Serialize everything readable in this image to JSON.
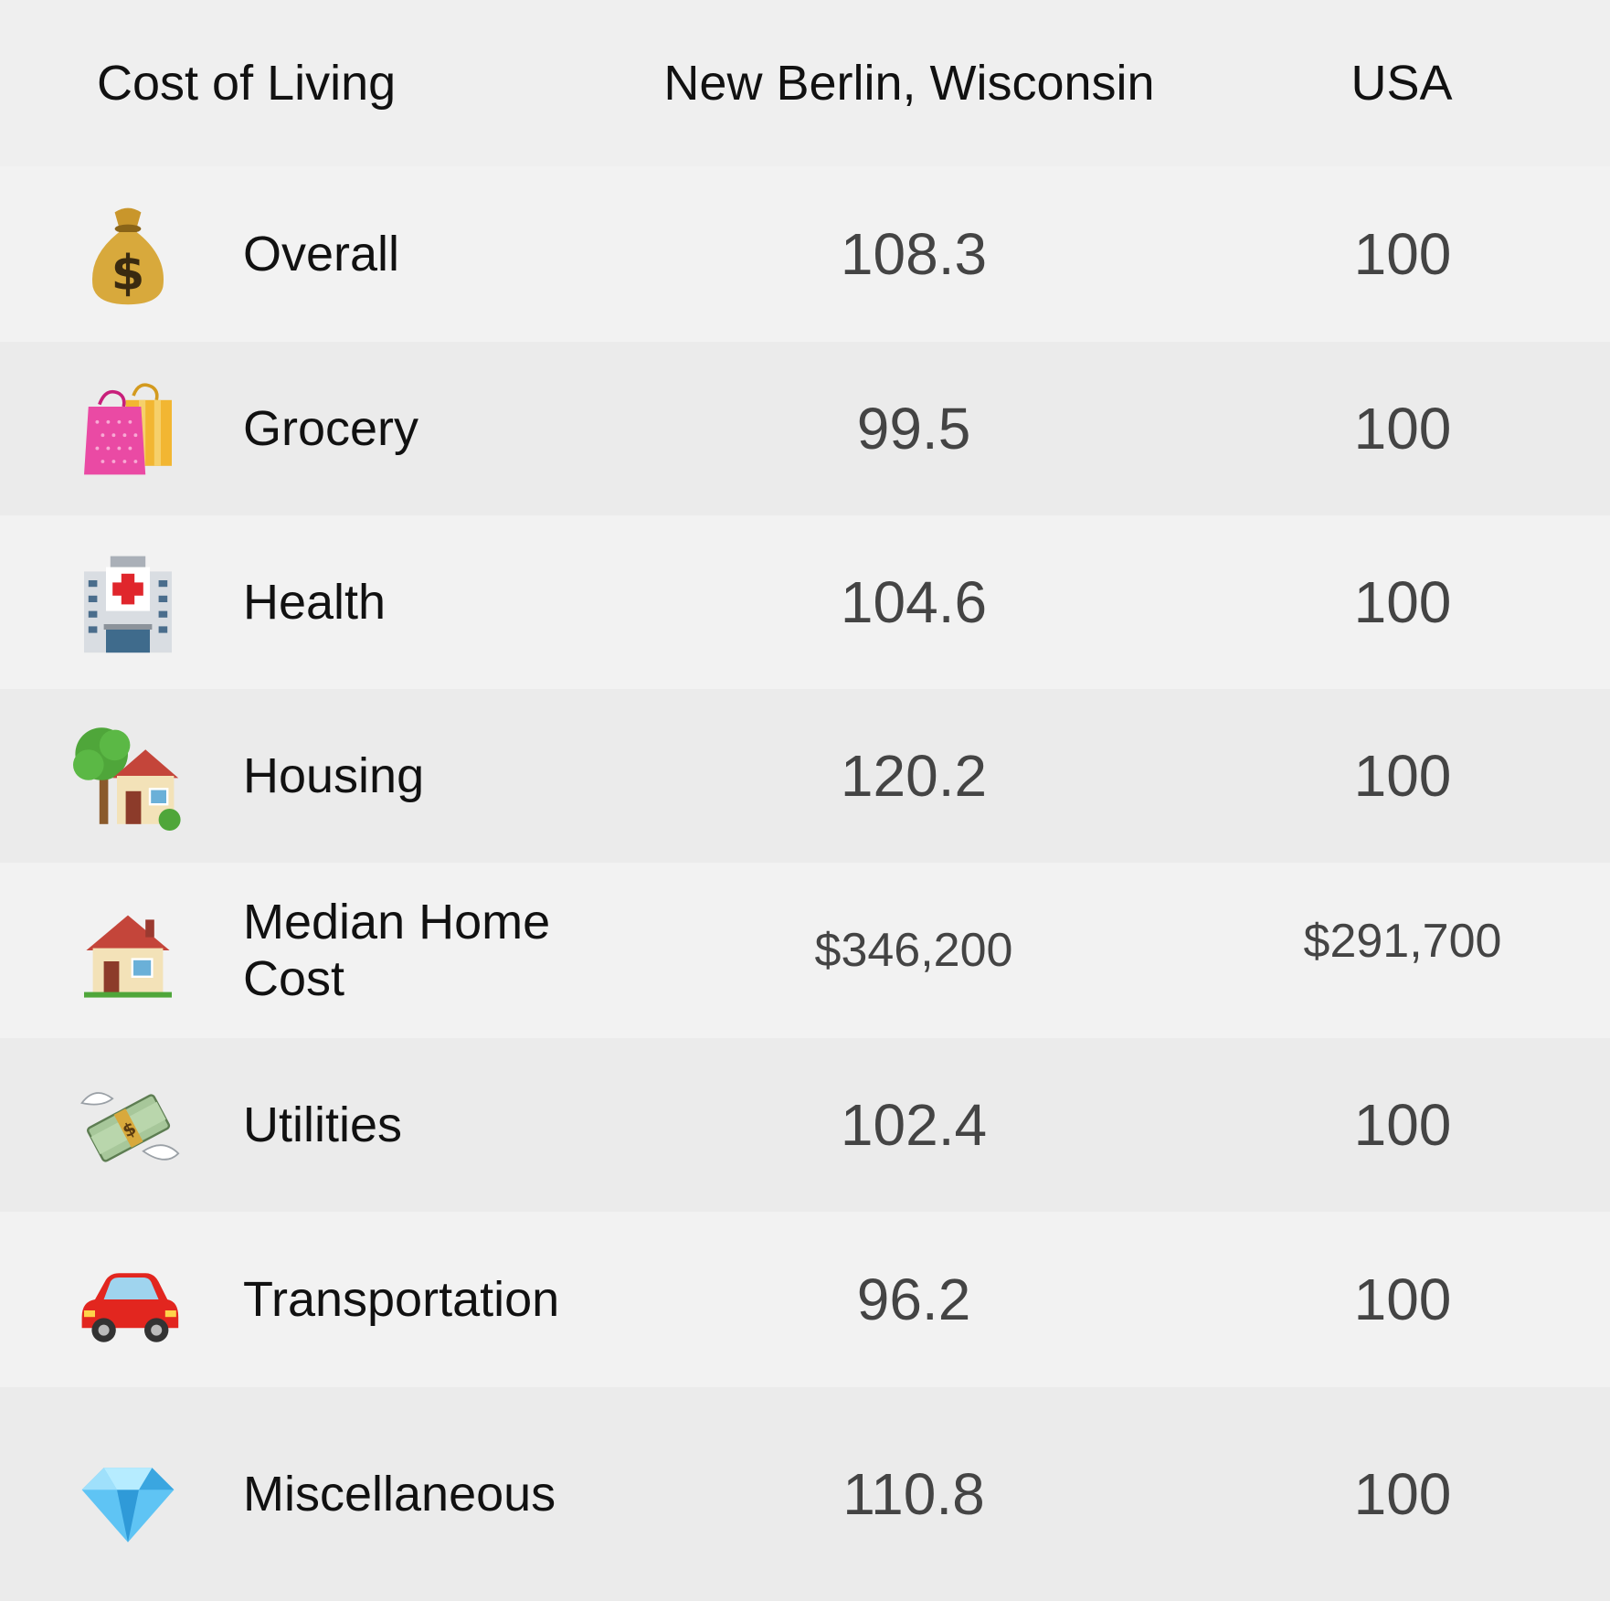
{
  "header": {
    "label": "Cost of Living",
    "city": "New Berlin, Wisconsin",
    "usa": "USA"
  },
  "rows": [
    {
      "name": "Overall",
      "city": "108.3",
      "usa": "100",
      "icon": "money-bag-icon"
    },
    {
      "name": "Grocery",
      "city": "99.5",
      "usa": "100",
      "icon": "shopping-bags-icon"
    },
    {
      "name": "Health",
      "city": "104.6",
      "usa": "100",
      "icon": "hospital-icon"
    },
    {
      "name": "Housing",
      "city": "120.2",
      "usa": "100",
      "icon": "house-with-garden-icon"
    },
    {
      "name": "Median Home Cost",
      "city": "$346,200",
      "usa": "$291,700",
      "icon": "house-icon"
    },
    {
      "name": "Utilities",
      "city": "102.4",
      "usa": "100",
      "icon": "money-with-wings-icon"
    },
    {
      "name": "Transportation",
      "city": "96.2",
      "usa": "100",
      "icon": "car-icon"
    },
    {
      "name": "Miscellaneous",
      "city": "110.8",
      "usa": "100",
      "icon": "gem-icon"
    }
  ]
}
